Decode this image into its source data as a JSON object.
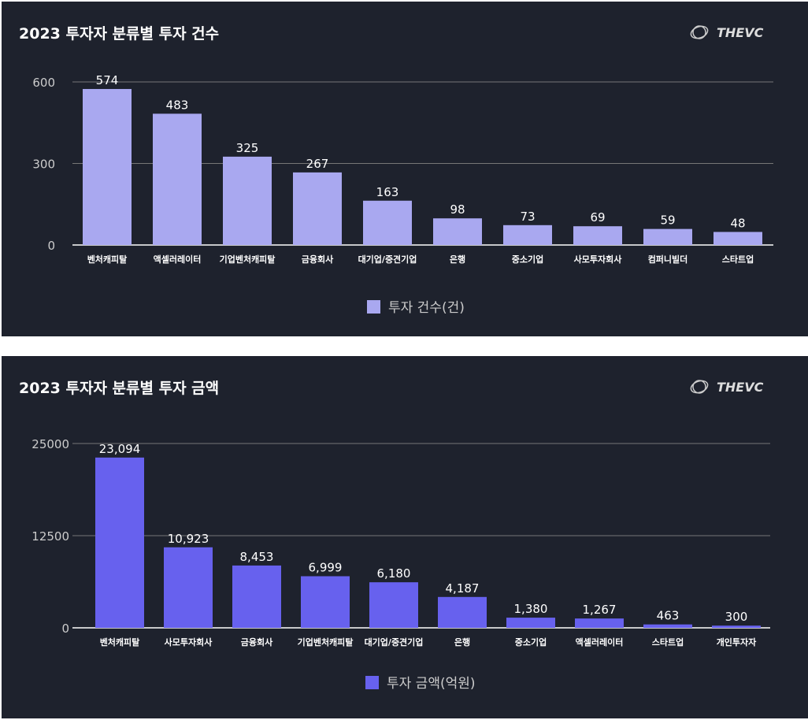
{
  "logo_text": "THEVC",
  "chart_data": [
    {
      "type": "bar",
      "title": "2023 투자자 분류별 투자 건수",
      "color": "#a9a8f0",
      "legend": "투자 건수(건)",
      "legend_position": "bottom",
      "grid": true,
      "ylim": [
        0,
        600
      ],
      "yticks": [
        0,
        300,
        600
      ],
      "categories": [
        "벤처캐피탈",
        "액셀러레이터",
        "기업벤처캐피탈",
        "금융회사",
        "대기업/중견기업",
        "은행",
        "중소기업",
        "사모투자회사",
        "컴퍼니빌더",
        "스타트업"
      ],
      "values": [
        574,
        483,
        325,
        267,
        163,
        98,
        73,
        69,
        59,
        48
      ],
      "labels": [
        "574",
        "483",
        "325",
        "267",
        "163",
        "98",
        "73",
        "69",
        "59",
        "48"
      ]
    },
    {
      "type": "bar",
      "title": "2023 투자자 분류별 투자 금액",
      "color": "#6761ee",
      "legend": "투자 금액(억원)",
      "legend_position": "bottom",
      "grid": true,
      "ylim": [
        0,
        25000
      ],
      "yticks": [
        0,
        12500,
        25000
      ],
      "categories": [
        "벤처캐피탈",
        "사모투자회사",
        "금융회사",
        "기업벤처캐피탈",
        "대기업/중견기업",
        "은행",
        "중소기업",
        "액셀러레이터",
        "스타트업",
        "개인투자자"
      ],
      "values": [
        23094,
        10923,
        8453,
        6999,
        6180,
        4187,
        1380,
        1267,
        463,
        300
      ],
      "labels": [
        "23,094",
        "10,923",
        "8,453",
        "6,999",
        "6,180",
        "4,187",
        "1,380",
        "1,267",
        "463",
        "300"
      ]
    }
  ]
}
